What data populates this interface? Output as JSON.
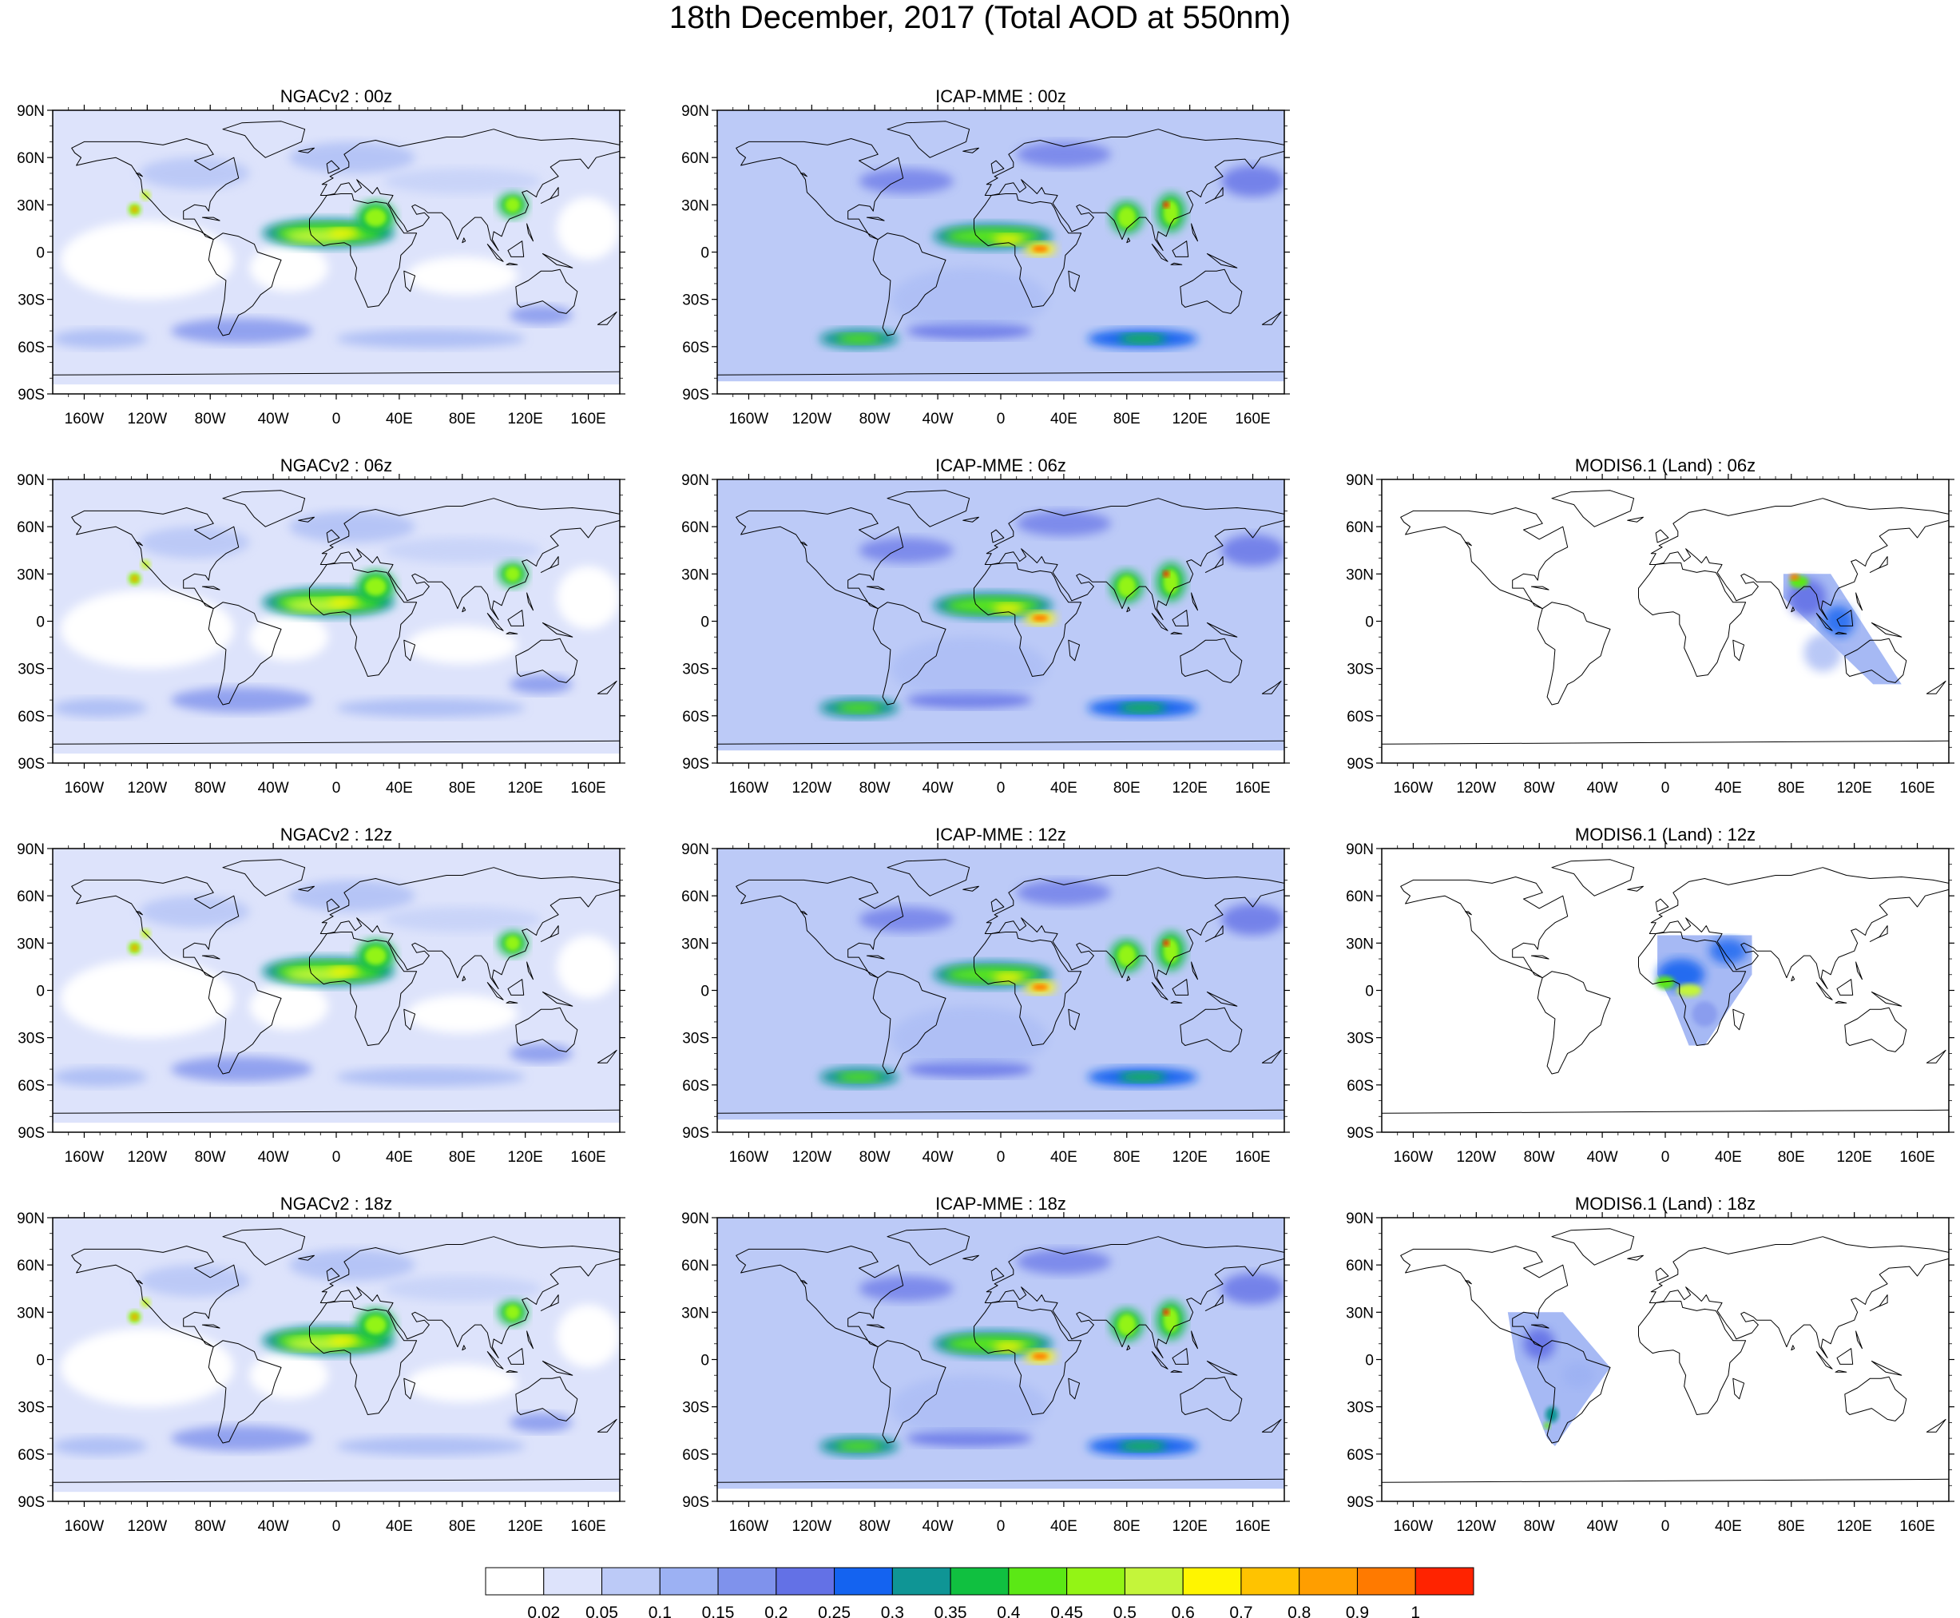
{
  "title": "18th December, 2017 (Total AOD at 550nm)",
  "lat_labels": [
    "90N",
    "60N",
    "30N",
    "0",
    "30S",
    "60S",
    "90S"
  ],
  "lon_labels": [
    "160W",
    "120W",
    "80W",
    "40W",
    "0",
    "40E",
    "80E",
    "120E",
    "160E"
  ],
  "lon_label_values": [
    -160,
    -120,
    -80,
    -40,
    0,
    40,
    80,
    120,
    160
  ],
  "lat_label_values": [
    90,
    60,
    30,
    0,
    -30,
    -60,
    -90
  ],
  "panels": [
    {
      "id": "ngac-00",
      "title": "NGACv2 : 00z",
      "model": "ngac",
      "time": 0
    },
    {
      "id": "icap-00",
      "title": "ICAP-MME : 00z",
      "model": "icap",
      "time": 0
    },
    {
      "id": "ngac-06",
      "title": "NGACv2 : 06z",
      "model": "ngac",
      "time": 6
    },
    {
      "id": "icap-06",
      "title": "ICAP-MME : 06z",
      "model": "icap",
      "time": 6
    },
    {
      "id": "modis-06",
      "title": "MODIS6.1 (Land) : 06z",
      "model": "modis",
      "time": 6
    },
    {
      "id": "ngac-12",
      "title": "NGACv2 : 12z",
      "model": "ngac",
      "time": 12
    },
    {
      "id": "icap-12",
      "title": "ICAP-MME : 12z",
      "model": "icap",
      "time": 12
    },
    {
      "id": "modis-12",
      "title": "MODIS6.1 (Land) : 12z",
      "model": "modis",
      "time": 12
    },
    {
      "id": "ngac-18",
      "title": "NGACv2 : 18z",
      "model": "ngac",
      "time": 18
    },
    {
      "id": "icap-18",
      "title": "ICAP-MME : 18z",
      "model": "icap",
      "time": 18
    },
    {
      "id": "modis-18",
      "title": "MODIS6.1 (Land) : 18z",
      "model": "modis",
      "time": 18
    }
  ],
  "colorbar": {
    "colors": [
      "#ffffff",
      "#dde3fb",
      "#bccaf7",
      "#9cb1f3",
      "#7f92ec",
      "#6371e6",
      "#1463f0",
      "#0f9595",
      "#10c040",
      "#5be815",
      "#93f415",
      "#c4f53a",
      "#fff500",
      "#ffc300",
      "#ff9e00",
      "#ff7a00",
      "#ff2300"
    ],
    "tick_labels": [
      "0.02",
      "0.05",
      "0.1",
      "0.15",
      "0.2",
      "0.25",
      "0.3",
      "0.35",
      "0.4",
      "0.45",
      "0.5",
      "0.6",
      "0.7",
      "0.8",
      "0.9",
      "1"
    ]
  },
  "colors": {
    "coastline": "#000000",
    "frame": "#000000"
  }
}
